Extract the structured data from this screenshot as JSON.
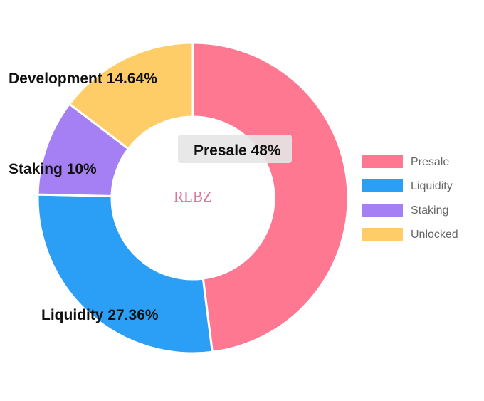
{
  "chart_data": {
    "type": "pie",
    "donut": true,
    "center_text": "RLBZ",
    "segments": [
      {
        "name": "Presale",
        "value": 48,
        "label": "Presale 48%",
        "color": "#ff7891"
      },
      {
        "name": "Liquidity",
        "value": 27.36,
        "label": "Liquidity 27.36%",
        "color": "#2b9ef5"
      },
      {
        "name": "Staking",
        "value": 10,
        "label": "Staking 10%",
        "color": "#a57ff4"
      },
      {
        "name": "Development",
        "value": 14.64,
        "label": "Development 14.64%",
        "color": "#ffcd67"
      }
    ],
    "legend": {
      "placement": "right",
      "items": [
        {
          "label": "Presale",
          "color": "#ff7891"
        },
        {
          "label": "Liquidity",
          "color": "#2b9ef5"
        },
        {
          "label": "Staking",
          "color": "#a57ff4"
        },
        {
          "label": "Unlocked",
          "color": "#ffcd67"
        }
      ]
    }
  }
}
